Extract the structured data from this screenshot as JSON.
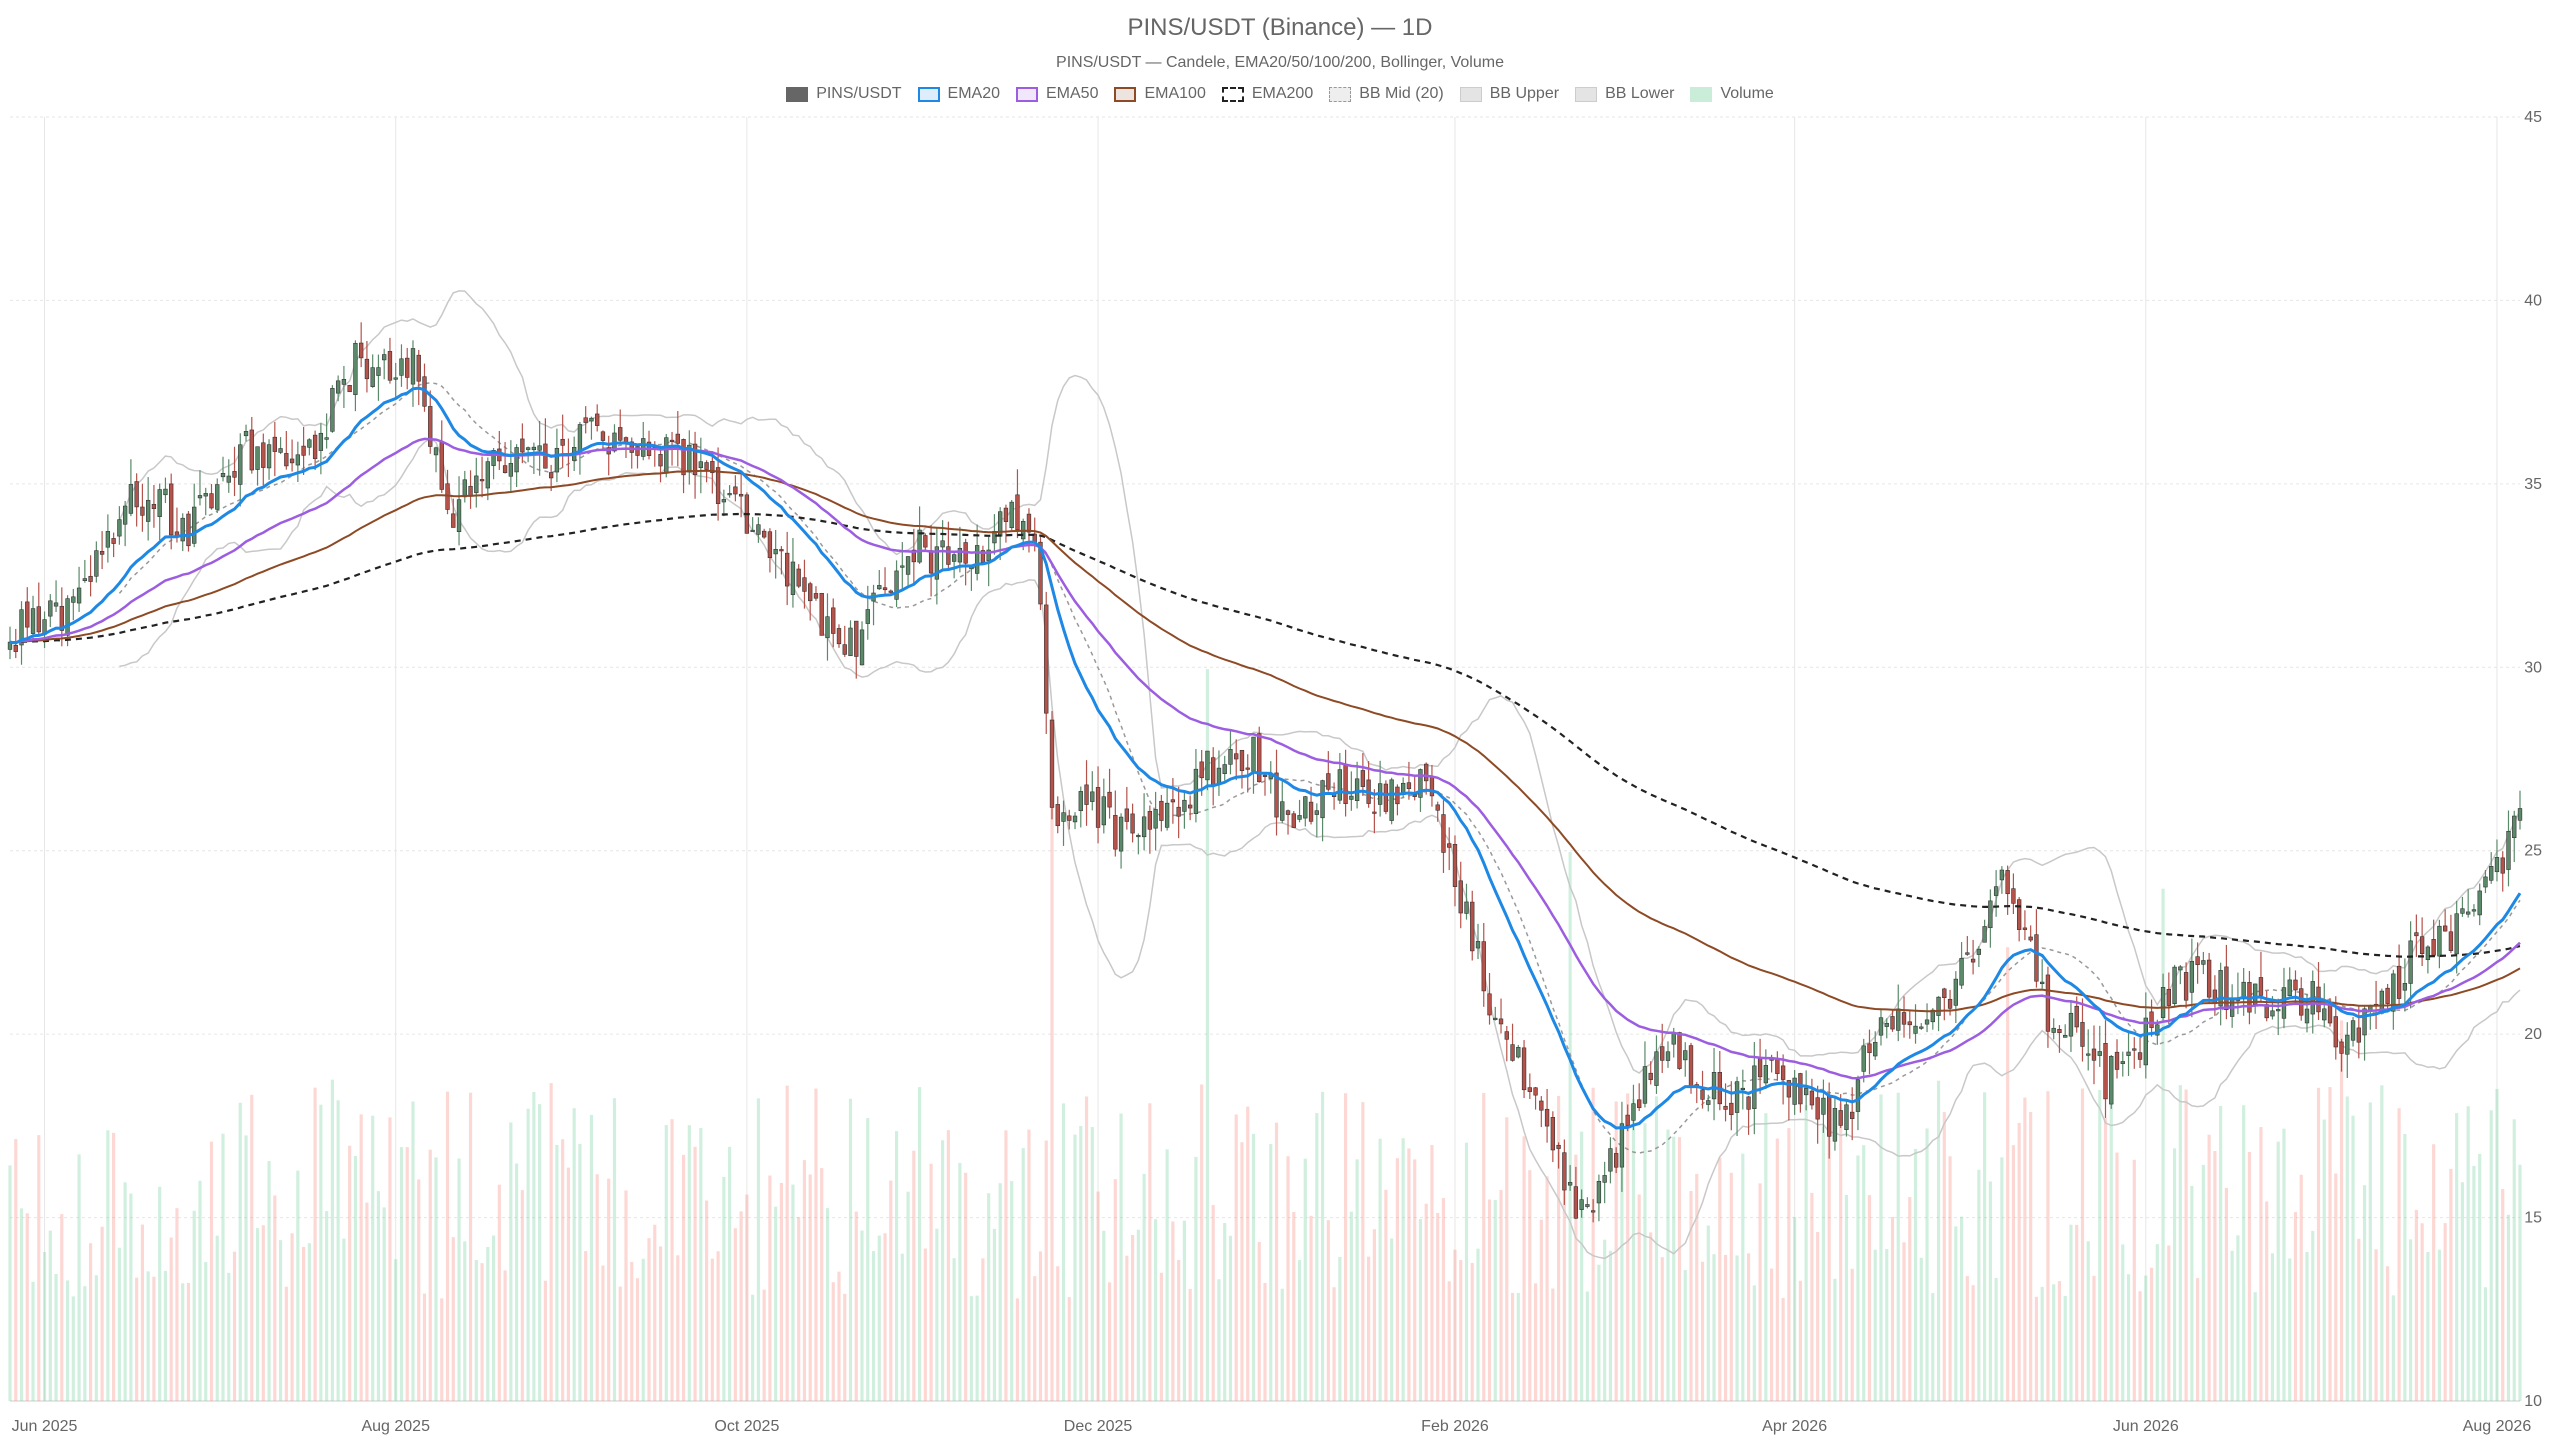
{
  "chart_data": {
    "type": "candlestick",
    "title": "PINS/USDT (Binance) — 1D",
    "subtitle": "PINS/USDT — Candele, EMA20/50/100/200, Bollinger, Volume",
    "x_range": [
      "2025-05-26",
      "2026-08-05"
    ],
    "ylim": [
      10,
      45
    ],
    "y_ticks": [
      10,
      15,
      20,
      25,
      30,
      35,
      40,
      45
    ],
    "x_ticks": [
      {
        "date": "2025-06-01",
        "label": "Jun 2025"
      },
      {
        "date": "2025-08-01",
        "label": "Aug 2025"
      },
      {
        "date": "2025-10-01",
        "label": "Oct 2025"
      },
      {
        "date": "2025-12-01",
        "label": "Dec 2025"
      },
      {
        "date": "2026-02-01",
        "label": "Feb 2026"
      },
      {
        "date": "2026-04-01",
        "label": "Apr 2026"
      },
      {
        "date": "2026-06-01",
        "label": "Jun 2026"
      },
      {
        "date": "2026-08-01",
        "label": "Aug 2026"
      }
    ],
    "grid": true,
    "legend_position": "top-center",
    "colors": {
      "up": "#5a8a6a",
      "down": "#b5524a",
      "ema20": "#1e88e5",
      "ema50": "#9c5de0",
      "ema100": "#8d4a25",
      "ema200": "#222222",
      "bb_mid": "#999999",
      "bb_band": "#c8c8c8",
      "volume_up": "rgba(120,210,160,0.35)",
      "volume_down": "rgba(245,140,130,0.35)"
    },
    "legend": [
      {
        "label": "PINS/USDT",
        "style": "candle"
      },
      {
        "label": "EMA20",
        "style": "ema20"
      },
      {
        "label": "EMA50",
        "style": "ema50"
      },
      {
        "label": "EMA100",
        "style": "ema100"
      },
      {
        "label": "EMA200",
        "style": "ema200"
      },
      {
        "label": "BB Mid (20)",
        "style": "bbmid"
      },
      {
        "label": "BB Upper",
        "style": "bbband"
      },
      {
        "label": "BB Lower",
        "style": "bbband"
      },
      {
        "label": "Volume",
        "style": "volume"
      }
    ],
    "price_path": [
      [
        "2025-05-26",
        30.8
      ],
      [
        "2025-06-05",
        31.5
      ],
      [
        "2025-06-15",
        34.5
      ],
      [
        "2025-06-25",
        34.0
      ],
      [
        "2025-07-05",
        35.5
      ],
      [
        "2025-07-15",
        35.8
      ],
      [
        "2025-07-25",
        38.0
      ],
      [
        "2025-08-05",
        38.5
      ],
      [
        "2025-08-10",
        34.0
      ],
      [
        "2025-08-20",
        36.0
      ],
      [
        "2025-08-30",
        35.5
      ],
      [
        "2025-09-10",
        36.8
      ],
      [
        "2025-09-20",
        35.5
      ],
      [
        "2025-09-30",
        34.5
      ],
      [
        "2025-10-05",
        33.0
      ],
      [
        "2025-10-12",
        31.5
      ],
      [
        "2025-10-20",
        31.0
      ],
      [
        "2025-10-30",
        33.0
      ],
      [
        "2025-11-10",
        33.5
      ],
      [
        "2025-11-20",
        33.8
      ],
      [
        "2025-11-23",
        26.0
      ],
      [
        "2025-11-28",
        27.0
      ],
      [
        "2025-12-05",
        25.0
      ],
      [
        "2025-12-15",
        26.8
      ],
      [
        "2025-12-28",
        27.5
      ],
      [
        "2026-01-05",
        26.0
      ],
      [
        "2026-01-15",
        26.5
      ],
      [
        "2026-01-25",
        27.0
      ],
      [
        "2026-01-30",
        25.2
      ],
      [
        "2026-02-05",
        22.0
      ],
      [
        "2026-02-12",
        19.5
      ],
      [
        "2026-02-22",
        15.0
      ],
      [
        "2026-03-01",
        17.0
      ],
      [
        "2026-03-10",
        19.5
      ],
      [
        "2026-03-20",
        18.5
      ],
      [
        "2026-04-01",
        18.5
      ],
      [
        "2026-04-10",
        17.8
      ],
      [
        "2026-04-15",
        20.0
      ],
      [
        "2026-04-28",
        21.0
      ],
      [
        "2026-05-08",
        24.0
      ],
      [
        "2026-05-15",
        21.0
      ],
      [
        "2026-05-25",
        18.5
      ],
      [
        "2026-06-05",
        21.5
      ],
      [
        "2026-06-15",
        21.0
      ],
      [
        "2026-06-25",
        21.2
      ],
      [
        "2026-07-05",
        19.8
      ],
      [
        "2026-07-15",
        21.5
      ],
      [
        "2026-07-25",
        22.8
      ],
      [
        "2026-08-05",
        25.5
      ]
    ],
    "volume_range": [
      0,
      5000000
    ],
    "volume_axis_fraction": 0.57,
    "volume_spikes": [
      {
        "date": "2025-11-23",
        "volume": 4500000
      },
      {
        "date": "2025-12-20",
        "volume": 5000000
      },
      {
        "date": "2026-02-21",
        "volume": 3750000
      },
      {
        "date": "2026-05-08",
        "volume": 3100000
      },
      {
        "date": "2026-06-04",
        "volume": 3500000
      },
      {
        "date": "2026-07-05",
        "volume": 2600000
      }
    ]
  }
}
